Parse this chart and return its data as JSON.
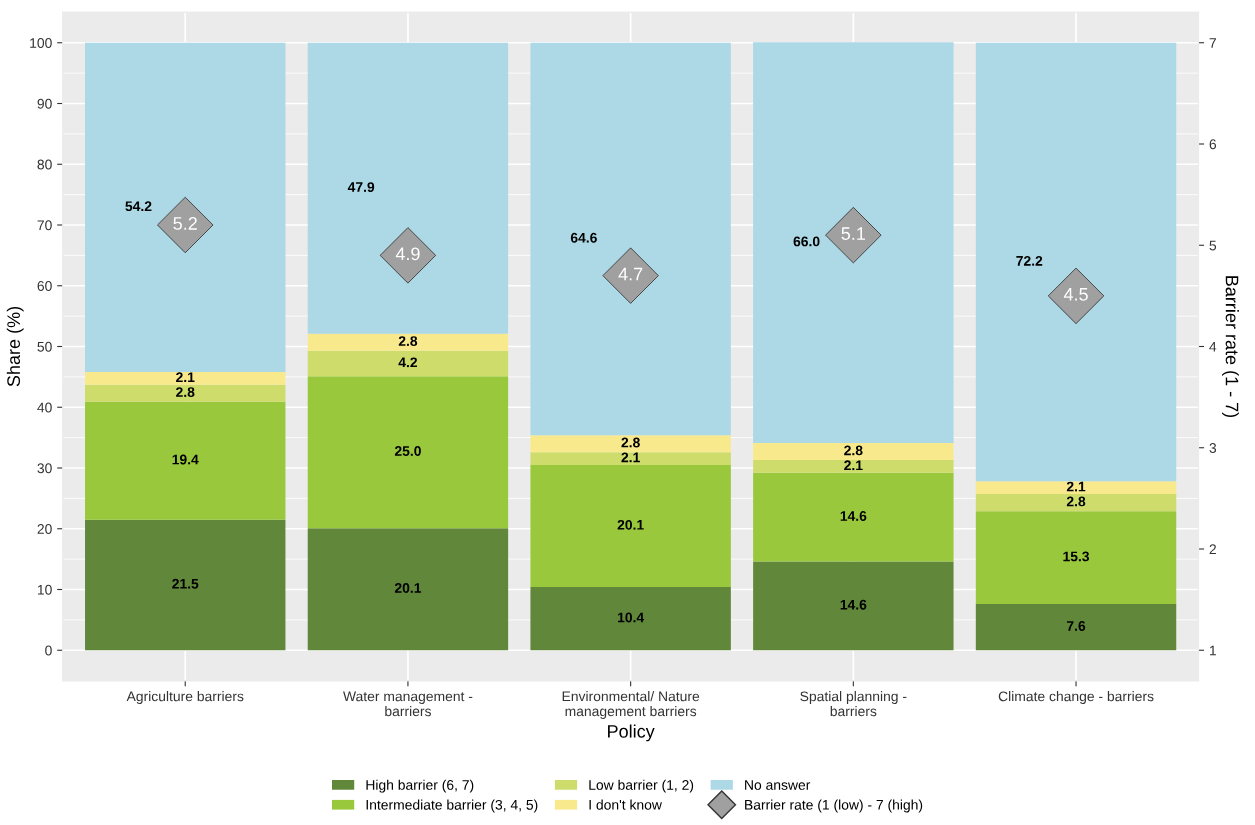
{
  "chart_data": {
    "type": "bar",
    "stacked": true,
    "xlabel": "Policy",
    "ylabel": "Share (%)",
    "y2label": "Barrier rate (1 - 7)",
    "categories": [
      "Agriculture barriers",
      "Water management -\nbarriers",
      "Environmental/ Nature\nmanagement barriers",
      "Spatial planning -\nbarriers",
      "Climate change - barriers"
    ],
    "series": [
      {
        "name": "High barrier (6, 7)",
        "color": "#61883a",
        "values": [
          21.5,
          20.1,
          10.4,
          14.6,
          7.6
        ],
        "value_labels": [
          "21.5",
          "20.1",
          "10.4",
          "14.6",
          "7.6"
        ]
      },
      {
        "name": "Intermediate barrier (3, 4, 5)",
        "color": "#9ac83c",
        "values": [
          19.4,
          25.0,
          20.1,
          14.6,
          15.3
        ],
        "value_labels": [
          "19.4",
          "25.0",
          "20.1",
          "14.6",
          "15.3"
        ]
      },
      {
        "name": "Low barrier (1, 2)",
        "color": "#cddc6a",
        "values": [
          2.8,
          4.2,
          2.1,
          2.1,
          2.8
        ],
        "value_labels": [
          "2.8",
          "4.2",
          "2.1",
          "2.1",
          "2.8"
        ]
      },
      {
        "name": "I don't know",
        "color": "#f8ea8c",
        "values": [
          2.1,
          2.8,
          2.8,
          2.8,
          2.1
        ],
        "value_labels": [
          "2.1",
          "2.8",
          "2.8",
          "2.8",
          "2.1"
        ]
      },
      {
        "name": "No answer",
        "color": "#add8e6",
        "values": [
          54.2,
          47.9,
          64.6,
          66.0,
          72.2
        ],
        "value_labels": [
          "54.2",
          "47.9",
          "64.6",
          "66.0",
          "72.2"
        ]
      },
      {
        "name": "Barrier rate (1 (low) - 7 (high)",
        "type": "scatter",
        "axis": "y2",
        "marker": "diamond",
        "color": "#a0a0a0",
        "values": [
          5.2,
          4.9,
          4.7,
          5.1,
          4.5
        ],
        "value_labels": [
          "5.2",
          "4.9",
          "4.7",
          "5.1",
          "4.5"
        ]
      }
    ],
    "ylim": [
      -5,
      105
    ],
    "yticks": [
      0,
      10,
      20,
      30,
      40,
      50,
      60,
      70,
      80,
      90,
      100
    ],
    "y2lim": [
      0.7,
      7.3
    ],
    "y2ticks": [
      1,
      2,
      3,
      4,
      5,
      6,
      7
    ],
    "grid": true,
    "legend": "bottom"
  }
}
